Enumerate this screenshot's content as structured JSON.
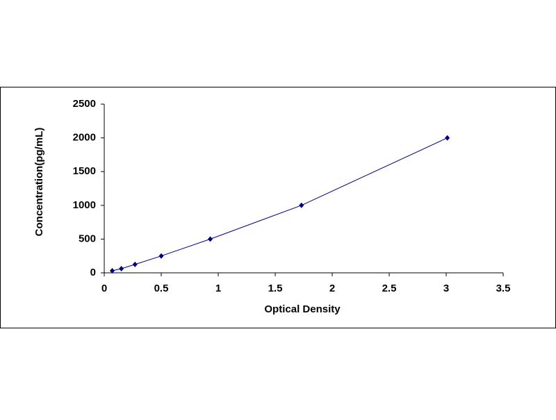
{
  "chart_data": {
    "type": "scatter-line",
    "x_label": "Optical Density",
    "y_label": "Concentration(pg/mL)",
    "x": [
      0.07,
      0.15,
      0.27,
      0.5,
      0.93,
      1.73,
      3.01
    ],
    "series": [
      {
        "color": "#000080",
        "values": [
          31,
          62,
          125,
          250,
          500,
          1000,
          2000
        ]
      }
    ],
    "xlim": [
      0,
      3.5
    ],
    "xticks": [
      0,
      0.5,
      1,
      1.5,
      2,
      2.5,
      3,
      3.5
    ],
    "ylim": [
      0,
      2500
    ],
    "yticks": [
      0,
      500,
      1000,
      1500,
      2000,
      2500
    ]
  }
}
